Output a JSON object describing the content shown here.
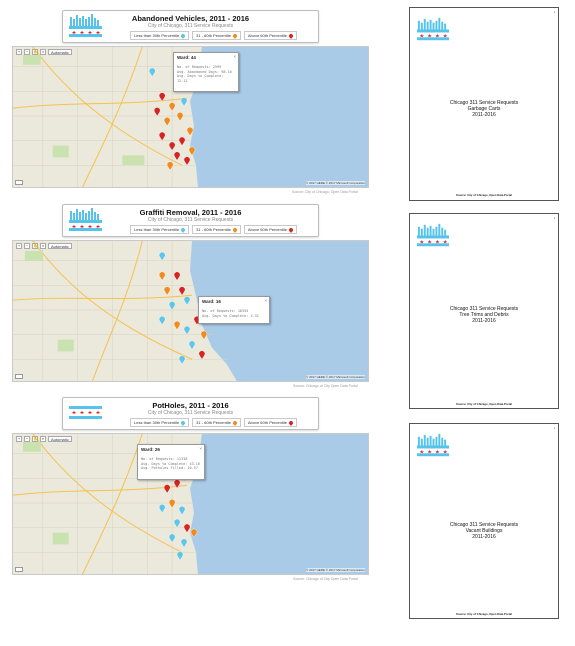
{
  "colors": {
    "low": "#5ec6e8",
    "mid": "#f08b1f",
    "high": "#d62420",
    "lake": "#a9cbe8",
    "flag_blue": "#55c3ea",
    "flag_red": "#e02326"
  },
  "panels": [
    {
      "title": "Abandoned Vehicles, 2011 - 2016",
      "subtitle": "City of Chicago, 311 Service Requests",
      "legend": [
        "Less than 30th Percentile",
        "31 - 60th Percentile",
        "Above 60th Percentile"
      ],
      "map": {
        "toolbar_select": "Automatic",
        "attribution": "© 2017 HERE  © 2017 Microsoft Corporation",
        "source": "Source: City of Chicago, Open Data Portal",
        "popup": {
          "title": "Ward: 44",
          "lines": [
            "No. of Requests: 2599",
            "Avg. Abandoned Days: 98.16",
            "Avg. Days to Complete: 12.12"
          ]
        }
      }
    },
    {
      "title": "Graffiti Removal, 2011 - 2016",
      "subtitle": "City of Chicago, 311 Service Requests",
      "legend": [
        "Less than 30th Percentile",
        "31 - 60th Percentile",
        "Above 60th Percentile"
      ],
      "map": {
        "toolbar_select": "Automatic",
        "attribution": "© 2017 HERE  © 2017 Microsoft Corporation",
        "source": "Source: Chicago of City Open Data Portal",
        "popup": {
          "title": "Ward: 16",
          "lines": [
            "No. of Requests: 16355",
            "Avg. Days to Complete: 4.31"
          ]
        }
      }
    },
    {
      "title": "PotHoles, 2011 - 2016",
      "subtitle": "City of Chicago, 311 Service Requests",
      "legend": [
        "Less than 30th Percentile",
        "31 - 60th Percentile",
        "Above 60th Percentile"
      ],
      "map": {
        "toolbar_select": "Automatic",
        "attribution": "© 2017 HERE  © 2017 Microsoft Corporation",
        "source": "Source: Chicago of City Open Data Portal",
        "popup": {
          "title": "Ward: 26",
          "lines": [
            "No. of Requests: 11338",
            "Avg. Days to Complete: 43.16",
            "Avg. Potholes Filled: 10.57"
          ]
        }
      }
    }
  ],
  "covers": [
    {
      "heading": "Chicago 311 Service Requests",
      "subject": "Garbage Carts",
      "years": "2011-2016",
      "source": "Source: City of Chicago, Open Data Portal"
    },
    {
      "heading": "Chicago 311 Service Requests",
      "subject": "Tree Trims and Debris",
      "years": "2011-2016",
      "source": "Source: City of Chicago, Open Data Portal"
    },
    {
      "heading": "Chicago 311 Service Requests",
      "subject": "Vacant Buildings",
      "years": "2011-2016",
      "source": "Source: City of Chicago, Open Data Portal"
    }
  ]
}
